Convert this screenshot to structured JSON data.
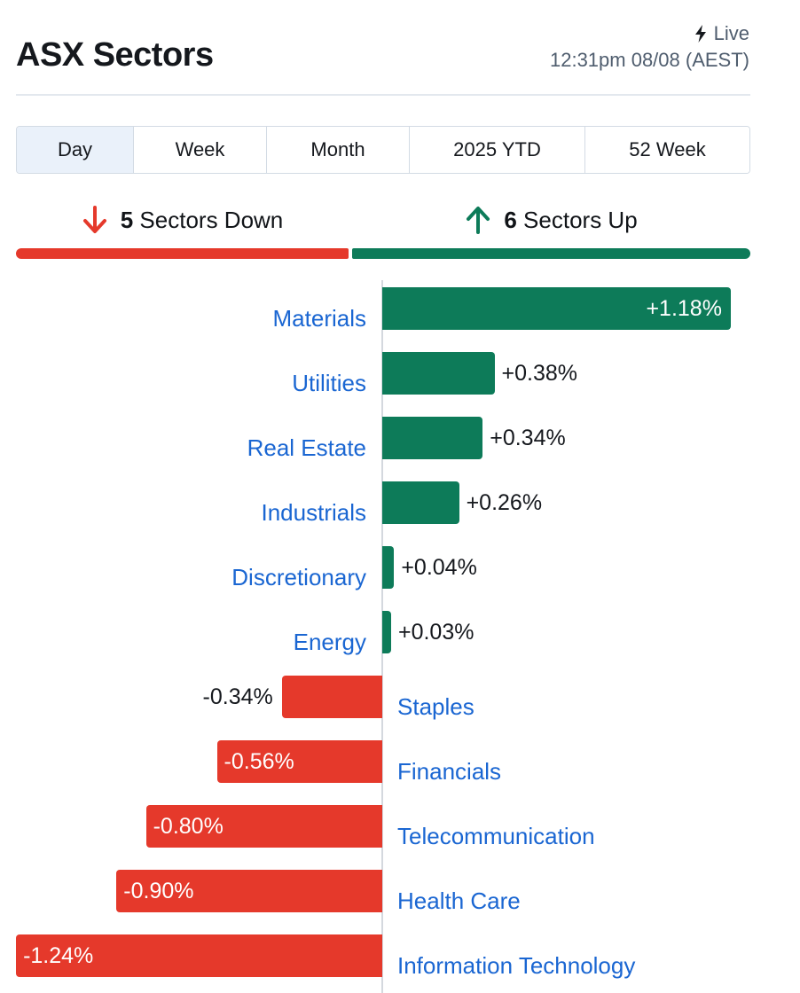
{
  "header": {
    "title": "ASX Sectors",
    "live_label": "Live",
    "live_icon": "lightning-bolt-icon",
    "timestamp": "12:31pm 08/08 (AEST)"
  },
  "tabs": [
    {
      "label": "Day",
      "active": true
    },
    {
      "label": "Week",
      "active": false
    },
    {
      "label": "Month",
      "active": false
    },
    {
      "label": "2025 YTD",
      "active": false
    },
    {
      "label": "52 Week",
      "active": false
    }
  ],
  "summary": {
    "down_count": "5",
    "down_text": "Sectors Down",
    "down_icon": "arrow-down-icon",
    "up_count": "6",
    "up_text": "Sectors Up",
    "up_icon": "arrow-up-icon",
    "down_color": "#e5392b",
    "up_color": "#0d7b59"
  },
  "chart_data": {
    "type": "bar",
    "orientation": "horizontal",
    "categories": [
      "Materials",
      "Utilities",
      "Real Estate",
      "Industrials",
      "Discretionary",
      "Energy",
      "Staples",
      "Financials",
      "Telecommunication",
      "Health Care",
      "Information Technology"
    ],
    "values": [
      1.18,
      0.38,
      0.34,
      0.26,
      0.04,
      0.03,
      -0.34,
      -0.56,
      -0.8,
      -0.9,
      -1.24
    ],
    "labels": [
      "+1.18%",
      "+0.38%",
      "+0.34%",
      "+0.26%",
      "+0.04%",
      "+0.03%",
      "-0.34%",
      "-0.56%",
      "-0.80%",
      "-0.90%",
      "-1.24%"
    ],
    "unit": "%",
    "positive_color": "#0d7b59",
    "negative_color": "#e5392b",
    "category_color": "#1a66d2"
  }
}
